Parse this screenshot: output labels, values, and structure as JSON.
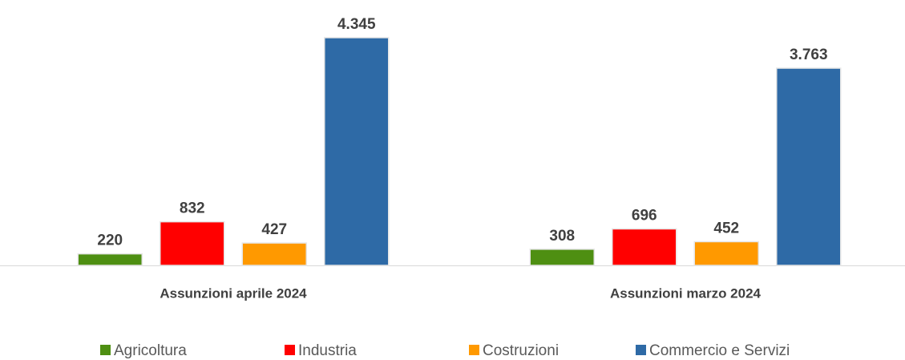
{
  "chart_data": {
    "type": "bar",
    "categories": [
      "Assunzioni aprile 2024",
      "Assunzioni marzo 2024"
    ],
    "series": [
      {
        "name": "Agricoltura",
        "color": "#4e8f12",
        "values": [
          220,
          308
        ],
        "value_labels": [
          "220",
          "308"
        ]
      },
      {
        "name": "Industria",
        "color": "#ff0000",
        "values": [
          832,
          696
        ],
        "value_labels": [
          "832",
          "696"
        ]
      },
      {
        "name": "Costruzioni",
        "color": "#ff9900",
        "values": [
          427,
          452
        ],
        "value_labels": [
          "427",
          "452"
        ]
      },
      {
        "name": "Commercio e Servizi",
        "color": "#2e6aa6",
        "values": [
          4345,
          3763
        ],
        "value_labels": [
          "4.345",
          "3.763"
        ]
      }
    ],
    "legend": "bottom"
  }
}
